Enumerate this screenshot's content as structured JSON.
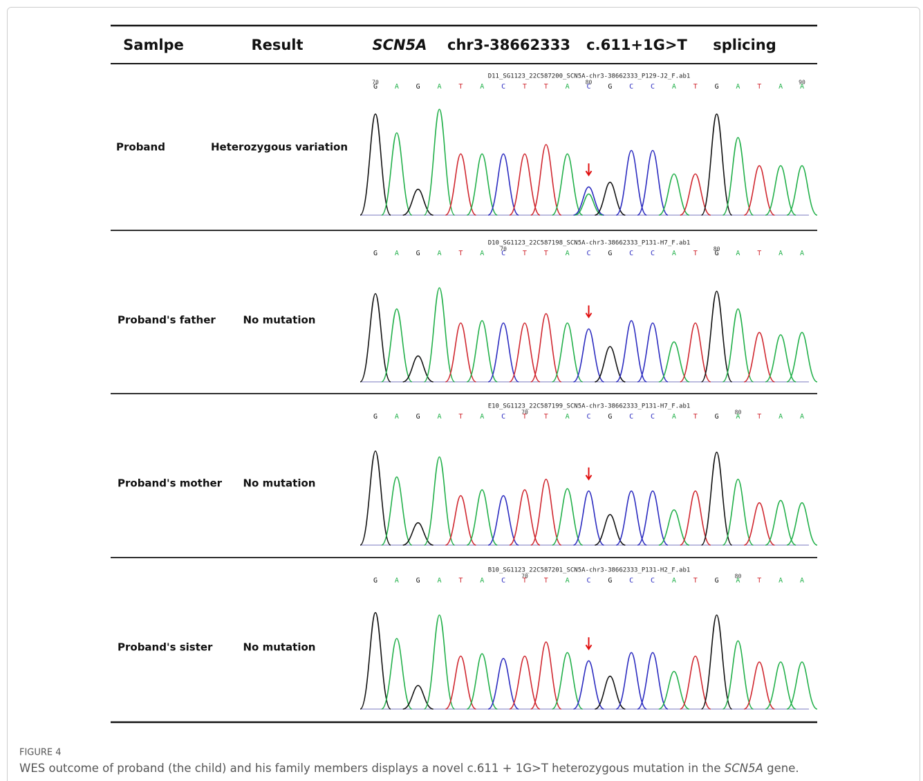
{
  "header": [
    "Samlpe",
    "Result",
    "SCN5A",
    "chr3-38662333",
    "c.611+1G>T",
    "splicing"
  ],
  "rows": [
    {
      "sample": "Proband",
      "result": "Heterozygous variation",
      "file": "D11_SG1123_22C587200_SCN5A-chr3-38662333_P129-J2_F.ab1",
      "bases": [
        "G",
        "A",
        "G",
        "A",
        "T",
        "A",
        "C",
        "T",
        "T",
        "A",
        "C",
        "G",
        "C",
        "C",
        "A",
        "T",
        "G",
        "A",
        "T",
        "A",
        "A"
      ],
      "markers": [
        {
          "index": 0,
          "label": "70"
        },
        {
          "index": 10,
          "label": "80"
        },
        {
          "index": 20,
          "label": "90"
        }
      ]
    },
    {
      "sample": "Proband's father",
      "result": "No mutation",
      "file": "D10_SG1123_22C587198_SCN5A-chr3-38662333_P131-H7_F.ab1",
      "bases": [
        "G",
        "A",
        "G",
        "A",
        "T",
        "A",
        "C",
        "T",
        "T",
        "A",
        "C",
        "G",
        "C",
        "C",
        "A",
        "T",
        "G",
        "A",
        "T",
        "A",
        "A"
      ],
      "markers": [
        {
          "index": 6,
          "label": "70"
        },
        {
          "index": 16,
          "label": "80"
        }
      ]
    },
    {
      "sample": "Proband's mother",
      "result": "No mutation",
      "file": "E10_SG1123_22C587199_SCN5A-chr3-38662333_P131-H7_F.ab1",
      "bases": [
        "G",
        "A",
        "G",
        "A",
        "T",
        "A",
        "C",
        "T",
        "T",
        "A",
        "C",
        "G",
        "C",
        "C",
        "A",
        "T",
        "G",
        "A",
        "T",
        "A",
        "A"
      ],
      "markers": [
        {
          "index": 7,
          "label": "70"
        },
        {
          "index": 17,
          "label": "80"
        }
      ]
    },
    {
      "sample": "Proband's sister",
      "result": "No mutation",
      "file": "B10_SG1123_22C587201_SCN5A-chr3-38662333_P131-H2_F.ab1",
      "bases": [
        "G",
        "A",
        "G",
        "A",
        "T",
        "A",
        "C",
        "T",
        "T",
        "A",
        "C",
        "G",
        "C",
        "C",
        "A",
        "T",
        "G",
        "A",
        "T",
        "A",
        "A"
      ],
      "markers": [
        {
          "index": 7,
          "label": "70"
        },
        {
          "index": 17,
          "label": "80"
        }
      ]
    }
  ],
  "caption": {
    "label": "FIGURE 4",
    "text": [
      "WES outcome of proband (the child) and his family members displays a novel c.611 + 1G>T heterozygous mutation in the ",
      "SCN5A",
      " gene."
    ]
  }
}
